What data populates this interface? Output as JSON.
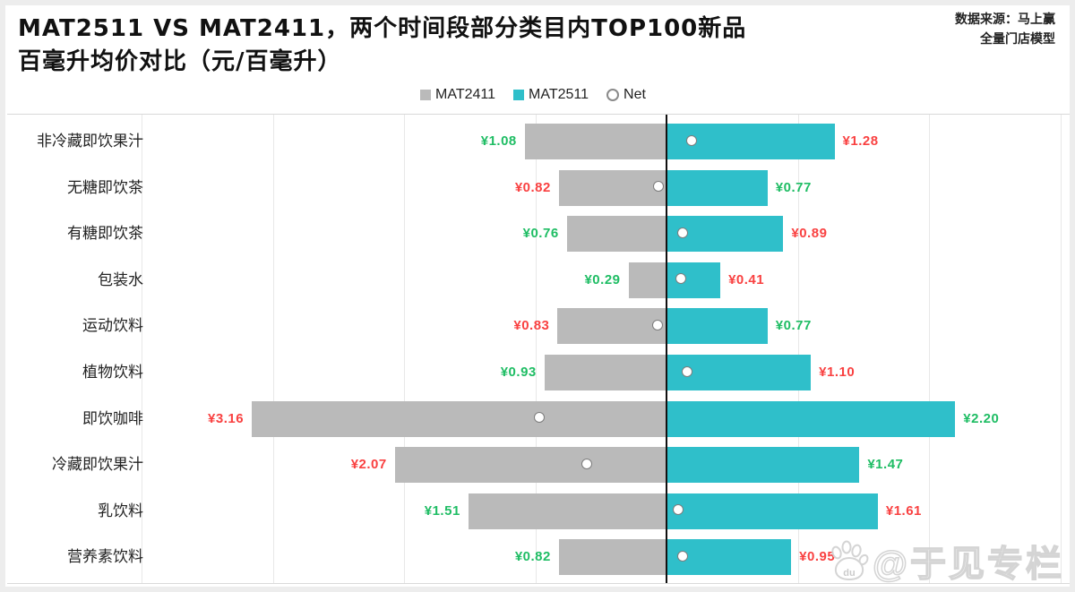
{
  "title": {
    "line1": "MAT2511 VS MAT2411，两个时间段部分类目内TOP100新品",
    "line2": "百毫升均价对比（元/百毫升）"
  },
  "source": {
    "line1": "数据来源：马上赢",
    "line2": "全量门店模型"
  },
  "legend": [
    {
      "label": "MAT2411",
      "marker": "square",
      "color": "#bababa"
    },
    {
      "label": "MAT2511",
      "marker": "square",
      "color": "#2fbfca"
    },
    {
      "label": "Net",
      "marker": "open-circle"
    }
  ],
  "watermark": {
    "text": "@于见专栏",
    "icon": "baidu-paw-icon",
    "icon_text": "du"
  },
  "colors": {
    "bar_2411": "#bababa",
    "bar_2511": "#2fbfca",
    "value_higher": "#f94141",
    "value_lower": "#1fbd64",
    "axis": "#111111",
    "gridline": "#e8e8e8",
    "plot_border": "#d9d9d9",
    "net_circle_border": "#7c7c7c"
  },
  "chart_data": {
    "type": "bar",
    "orientation": "horizontal-diverging",
    "title": "MAT2511 VS MAT2411，两个时间段部分类目内TOP100新品百毫升均价对比（元/百毫升）",
    "value_unit": "元/百毫升",
    "value_prefix": "¥",
    "categories": [
      "非冷藏即饮果汁",
      "无糖即饮茶",
      "有糖即饮茶",
      "包装水",
      "运动饮料",
      "植物饮料",
      "即饮咖啡",
      "冷藏即饮果汁",
      "乳饮料",
      "营养素饮料"
    ],
    "series": [
      {
        "name": "MAT2411",
        "direction": "left",
        "values": [
          1.08,
          0.82,
          0.76,
          0.29,
          0.83,
          0.93,
          3.16,
          2.07,
          1.51,
          0.82
        ]
      },
      {
        "name": "MAT2511",
        "direction": "right",
        "values": [
          1.28,
          0.77,
          0.89,
          0.41,
          0.77,
          1.1,
          2.2,
          1.47,
          1.61,
          0.95
        ]
      }
    ],
    "net_marker": {
      "name": "Net",
      "values": [
        0.2,
        -0.05,
        0.13,
        0.12,
        -0.06,
        0.17,
        -0.96,
        -0.6,
        0.1,
        0.13
      ]
    },
    "xlim": [
      -4.1,
      3.05
    ],
    "grid_step": 1,
    "grid": true,
    "legend_position": "top-center",
    "color_rule": "higher value of pair labeled red, lower labeled green"
  }
}
